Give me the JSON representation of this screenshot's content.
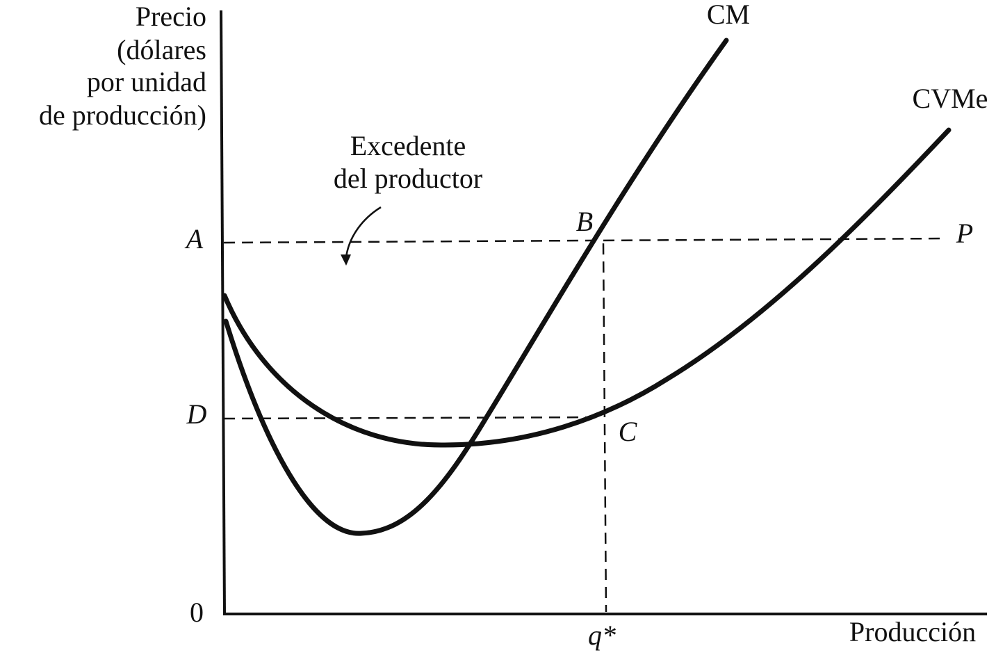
{
  "axis_label": {
    "y": [
      "Precio",
      "(dólares",
      "por unidad",
      "de producción)"
    ],
    "x": "Producción",
    "origin": "0"
  },
  "annotation": [
    "Excedente",
    "del productor"
  ],
  "points": {
    "A": "A",
    "B": "B",
    "C": "C",
    "D": "D",
    "P": "P",
    "q": "q*"
  },
  "curves": {
    "mc": "CM",
    "avc": "CVMe"
  }
}
